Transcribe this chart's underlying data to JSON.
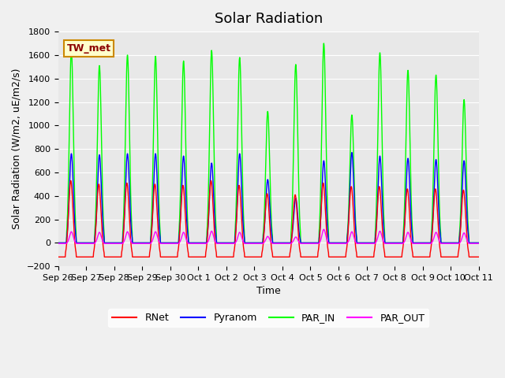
{
  "title": "Solar Radiation",
  "ylabel": "Solar Radiation (W/m2, uE/m2/s)",
  "xlabel": "Time",
  "ylim": [
    -200,
    1800
  ],
  "yticks": [
    -200,
    0,
    200,
    400,
    600,
    800,
    1000,
    1200,
    1400,
    1600,
    1800
  ],
  "xtick_labels": [
    "Sep 26",
    "Sep 27",
    "Sep 28",
    "Sep 29",
    "Sep 30",
    "Oct 1",
    "Oct 2",
    "Oct 3",
    "Oct 4",
    "Oct 5",
    "Oct 6",
    "Oct 7",
    "Oct 8",
    "Oct 9",
    "Oct 10",
    "Oct 11"
  ],
  "legend_labels": [
    "RNet",
    "Pyranom",
    "PAR_IN",
    "PAR_OUT"
  ],
  "legend_colors": [
    "#ff0000",
    "#0000ff",
    "#00ff00",
    "#ff00ff"
  ],
  "annotation_text": "TW_met",
  "annotation_bg": "#ffffcc",
  "annotation_border": "#cc8800",
  "plot_bg": "#e8e8e8",
  "fig_bg": "#f0f0f0",
  "title_fontsize": 13,
  "axis_label_fontsize": 9,
  "tick_label_fontsize": 8,
  "n_days": 15,
  "points_per_day": 96,
  "rnet_peaks": [
    530,
    500,
    510,
    500,
    490,
    530,
    490,
    420,
    410,
    510,
    480,
    480,
    460,
    460,
    450
  ],
  "pyranom_peaks": [
    760,
    750,
    760,
    760,
    740,
    680,
    760,
    540,
    380,
    700,
    770,
    740,
    720,
    710,
    700
  ],
  "par_in_peaks": [
    1640,
    1510,
    1600,
    1590,
    1550,
    1640,
    1580,
    1120,
    1520,
    1700,
    1090,
    1620,
    1470,
    1430,
    1220
  ],
  "par_out_peaks": [
    95,
    90,
    95,
    95,
    90,
    100,
    90,
    55,
    50,
    115,
    95,
    100,
    90,
    90,
    85
  ],
  "rnet_night": -120,
  "par_out_night": -5,
  "pyranom_night": 0,
  "par_in_night": 0
}
